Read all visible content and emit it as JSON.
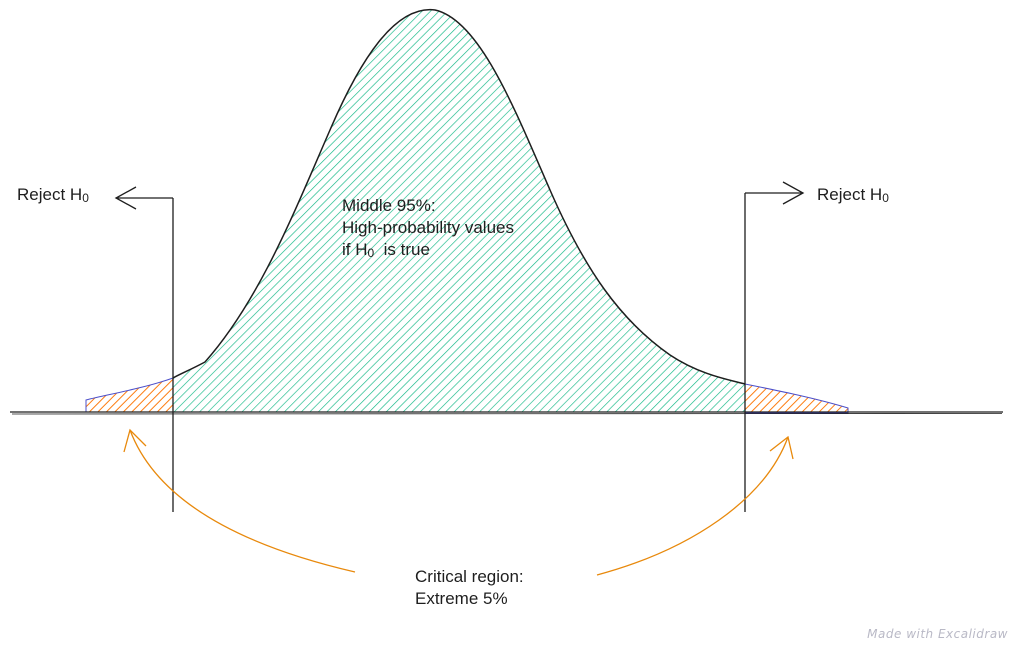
{
  "diagram": {
    "reject_left": {
      "text": "Reject H",
      "subscript": "0"
    },
    "reject_right": {
      "text": "Reject H",
      "subscript": "0"
    },
    "middle": {
      "line1": "Middle 95%:",
      "line2": "High-probability values",
      "line3_prefix": "if H",
      "line3_subscript": "0",
      "line3_suffix": "is true"
    },
    "critical": {
      "line1": "Critical region:",
      "line2": "Extreme 5%"
    },
    "watermark": "Made with Excalidraw"
  },
  "colors": {
    "curve": "#1e1e1e",
    "middle_fill": "#12b886",
    "tail_fill": "#fd7e14",
    "arrow_orange": "#e8890c",
    "tail_outline": "#4c4fc9"
  }
}
